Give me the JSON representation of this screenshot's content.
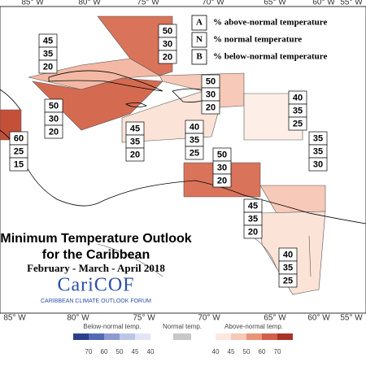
{
  "longitudes_top": [
    "85° W",
    "80° W",
    "75° W",
    "70° W",
    "65° W",
    "60° W",
    "55° W"
  ],
  "longitudes_bottom": [
    "85° W",
    "80° W",
    "75° W",
    "70° W",
    "65° W",
    "60° W",
    "55° W"
  ],
  "key": [
    {
      "letter": "A",
      "text": "% above-normal temperature"
    },
    {
      "letter": "N",
      "text": "% normal temperature"
    },
    {
      "letter": "B",
      "text": "% below-normal temperature"
    }
  ],
  "title": {
    "line1": "Minimum Temperature Outlook",
    "line2": "for the Caribbean",
    "period": "February - March - April 2018"
  },
  "logo": {
    "name": "CariCOF",
    "tagline": "CARIBBEAN CLIMATE OUTLOOK FORUM"
  },
  "regions": [
    {
      "values": [
        45,
        35,
        20
      ]
    },
    {
      "values": [
        50,
        30,
        20
      ]
    },
    {
      "values": [
        50,
        30,
        20
      ]
    },
    {
      "values": [
        50,
        30,
        20
      ]
    },
    {
      "values": [
        60,
        25,
        15
      ]
    },
    {
      "values": [
        45,
        35,
        20
      ]
    },
    {
      "values": [
        40,
        35,
        25
      ]
    },
    {
      "values": [
        40,
        35,
        25
      ]
    },
    {
      "values": [
        35,
        35,
        30
      ]
    },
    {
      "values": [
        50,
        30,
        20
      ]
    },
    {
      "values": [
        45,
        35,
        20
      ]
    },
    {
      "values": [
        40,
        35,
        25
      ]
    }
  ],
  "colorbar": {
    "below_label": "Below-normal temp.",
    "below_ticks": [
      70,
      60,
      50,
      45,
      40
    ],
    "normal_label": "Normal temp.",
    "above_label": "Above-normal temp.",
    "above_ticks": [
      40,
      45,
      50,
      60,
      70
    ]
  }
}
